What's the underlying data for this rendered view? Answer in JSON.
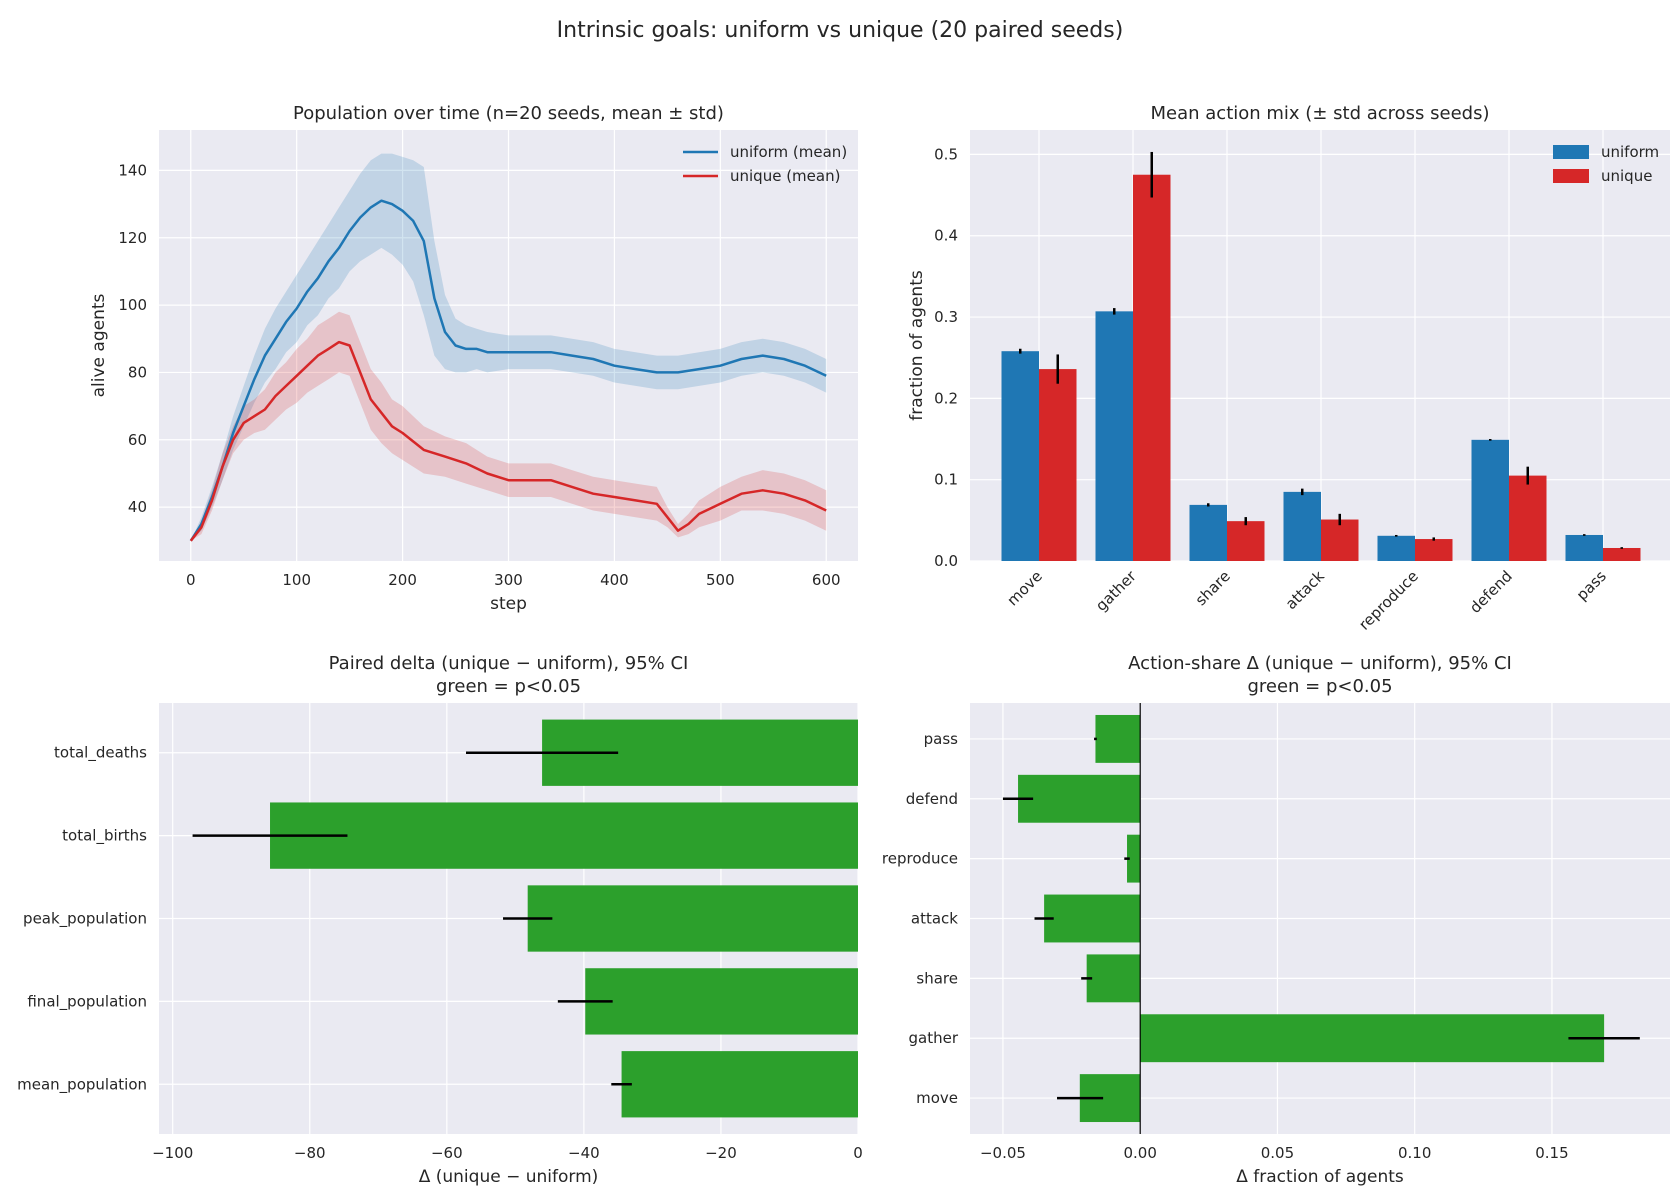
{
  "figure": {
    "title": "Intrinsic goals: uniform vs unique (20 paired seeds)"
  },
  "colors": {
    "uniform": "#1f77b4",
    "unique": "#d62728",
    "significant": "#2ca02c",
    "background": "#eaeaf2",
    "grid": "#ffffff"
  },
  "chart_data": [
    {
      "id": "population",
      "type": "line",
      "title": "Population over time (n=20 seeds, mean ± std)",
      "xlabel": "step",
      "ylabel": "alive agents",
      "xlim": [
        -30,
        630
      ],
      "ylim": [
        24,
        152
      ],
      "xticks": [
        0,
        100,
        200,
        300,
        400,
        500,
        600
      ],
      "yticks": [
        40,
        60,
        80,
        100,
        120,
        140
      ],
      "grid": true,
      "legend": "top-right",
      "series": [
        {
          "name": "uniform (mean)",
          "x": [
            0,
            10,
            20,
            30,
            40,
            50,
            60,
            70,
            80,
            90,
            100,
            110,
            120,
            130,
            140,
            150,
            160,
            170,
            180,
            190,
            200,
            210,
            220,
            230,
            240,
            250,
            260,
            270,
            280,
            300,
            320,
            340,
            360,
            380,
            400,
            420,
            440,
            460,
            480,
            500,
            520,
            540,
            560,
            580,
            600
          ],
          "mean": [
            30,
            35,
            43,
            52,
            62,
            70,
            78,
            85,
            90,
            95,
            99,
            104,
            108,
            113,
            117,
            122,
            126,
            129,
            131,
            130,
            128,
            125,
            119,
            102,
            92,
            88,
            87,
            87,
            86,
            86,
            86,
            86,
            85,
            84,
            82,
            81,
            80,
            80,
            81,
            82,
            84,
            85,
            84,
            82,
            79
          ],
          "std": [
            0,
            2,
            3,
            4,
            5,
            6,
            7,
            8,
            9,
            9,
            10,
            10,
            11,
            11,
            12,
            12,
            13,
            14,
            14,
            15,
            16,
            18,
            22,
            17,
            11,
            8,
            7,
            6,
            6,
            5,
            5,
            5,
            5,
            5,
            5,
            5,
            5,
            5,
            5,
            5,
            5,
            5,
            5,
            5,
            5
          ]
        },
        {
          "name": "unique (mean)",
          "x": [
            0,
            10,
            20,
            30,
            40,
            50,
            60,
            70,
            80,
            90,
            100,
            110,
            120,
            130,
            140,
            150,
            160,
            170,
            180,
            190,
            200,
            220,
            240,
            260,
            280,
            300,
            320,
            340,
            360,
            380,
            400,
            420,
            440,
            450,
            460,
            470,
            480,
            500,
            520,
            540,
            560,
            580,
            600
          ],
          "mean": [
            30,
            34,
            42,
            52,
            60,
            65,
            67,
            69,
            73,
            76,
            79,
            82,
            85,
            87,
            89,
            88,
            80,
            72,
            68,
            64,
            62,
            57,
            55,
            53,
            50,
            48,
            48,
            48,
            46,
            44,
            43,
            42,
            41,
            37,
            33,
            35,
            38,
            41,
            44,
            45,
            44,
            42,
            39
          ],
          "std": [
            0,
            2,
            3,
            4,
            4,
            5,
            5,
            6,
            7,
            7,
            8,
            8,
            9,
            9,
            9,
            9,
            9,
            9,
            9,
            8,
            8,
            7,
            6,
            6,
            5,
            5,
            5,
            5,
            5,
            5,
            5,
            5,
            5,
            3,
            2,
            3,
            4,
            5,
            5,
            6,
            6,
            6,
            6
          ]
        }
      ]
    },
    {
      "id": "action-mix",
      "type": "bar",
      "title": "Mean action mix (± std across seeds)",
      "ylabel": "fraction of agents",
      "xlabel": "",
      "ylim": [
        0,
        0.53
      ],
      "yticks": [
        "0.0",
        "0.1",
        "0.2",
        "0.3",
        "0.4",
        "0.5"
      ],
      "categories": [
        "move",
        "gather",
        "share",
        "attack",
        "reproduce",
        "defend",
        "pass"
      ],
      "grid": true,
      "legend": "top-right",
      "series": [
        {
          "name": "uniform",
          "values": [
            0.258,
            0.307,
            0.069,
            0.085,
            0.031,
            0.149,
            0.032
          ],
          "err": [
            0.003,
            0.004,
            0.002,
            0.004,
            0.001,
            0.001,
            0.001
          ]
        },
        {
          "name": "unique",
          "values": [
            0.236,
            0.475,
            0.049,
            0.051,
            0.027,
            0.105,
            0.016
          ],
          "err": [
            0.018,
            0.028,
            0.005,
            0.007,
            0.002,
            0.011,
            0.001
          ]
        }
      ]
    },
    {
      "id": "paired-delta",
      "type": "bar",
      "orientation": "horizontal",
      "title": "Paired delta (unique − uniform), 95% CI",
      "subtitle": "green = p<0.05",
      "xlabel": "Δ (unique − uniform)",
      "ylabel": "",
      "xlim": [
        -102,
        0
      ],
      "xticks": [
        -100,
        -80,
        -60,
        -40,
        -20,
        0
      ],
      "categories": [
        "mean_population",
        "final_population",
        "peak_population",
        "total_births",
        "total_deaths"
      ],
      "values": [
        -34.5,
        -39.8,
        -48.2,
        -85.8,
        -46.1
      ],
      "ci": [
        [
          -36.0,
          -33.0
        ],
        [
          -43.8,
          -35.8
        ],
        [
          -51.8,
          -44.6
        ],
        [
          -97.1,
          -74.5
        ],
        [
          -57.2,
          -35.0
        ]
      ],
      "grid": true
    },
    {
      "id": "action-share-delta",
      "type": "bar",
      "orientation": "horizontal",
      "title": "Action-share Δ (unique − uniform), 95% CI",
      "subtitle": "green = p<0.05",
      "xlabel": "Δ fraction of agents",
      "ylabel": "",
      "xlim": [
        -0.062,
        0.193
      ],
      "xticks": [
        "−0.05",
        "0.00",
        "0.05",
        "0.10",
        "0.15"
      ],
      "xtick_values": [
        -0.05,
        0,
        0.05,
        0.1,
        0.15
      ],
      "categories": [
        "move",
        "gather",
        "share",
        "attack",
        "reproduce",
        "defend",
        "pass"
      ],
      "values": [
        -0.022,
        0.169,
        -0.0195,
        -0.035,
        -0.0048,
        -0.0445,
        -0.0163
      ],
      "ci": [
        [
          -0.0303,
          -0.0135
        ],
        [
          0.156,
          0.182
        ],
        [
          -0.0215,
          -0.0175
        ],
        [
          -0.0385,
          -0.0315
        ],
        [
          -0.0058,
          -0.0038
        ],
        [
          -0.05,
          -0.039
        ],
        [
          -0.0168,
          -0.0158
        ]
      ],
      "grid": true
    }
  ]
}
